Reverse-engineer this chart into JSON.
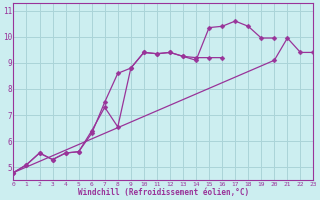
{
  "background_color": "#cceef0",
  "grid_color": "#aad4d8",
  "line_color": "#993399",
  "xlabel": "Windchill (Refroidissement éolien,°C)",
  "xlim": [
    0,
    23
  ],
  "ylim": [
    4.5,
    11.3
  ],
  "yticks": [
    5,
    6,
    7,
    8,
    9,
    10,
    11
  ],
  "xticks": [
    0,
    1,
    2,
    3,
    4,
    5,
    6,
    7,
    8,
    9,
    10,
    11,
    12,
    13,
    14,
    15,
    16,
    17,
    18,
    19,
    20,
    21,
    22,
    23
  ],
  "s1_x": [
    0,
    1,
    2,
    3,
    4,
    5,
    6,
    7,
    8,
    9,
    10,
    11,
    12,
    13,
    14,
    15,
    16
  ],
  "s1_y": [
    4.8,
    5.1,
    5.55,
    5.3,
    5.55,
    5.6,
    6.4,
    7.3,
    6.55,
    8.8,
    9.4,
    9.35,
    9.4,
    9.25,
    9.2,
    9.2,
    9.2
  ],
  "s2_x": [
    0,
    1,
    2,
    3,
    4,
    5,
    6,
    7,
    8,
    9,
    10,
    11,
    12,
    13,
    14,
    15,
    16,
    17,
    18,
    19,
    20
  ],
  "s2_y": [
    4.8,
    5.1,
    5.55,
    5.3,
    5.55,
    5.6,
    6.3,
    7.5,
    8.6,
    8.8,
    9.4,
    9.35,
    9.4,
    9.25,
    9.1,
    10.35,
    10.4,
    10.6,
    10.4,
    9.95,
    9.95
  ],
  "s3_x": [
    0,
    20,
    21,
    22,
    23
  ],
  "s3_y": [
    4.8,
    9.1,
    9.95,
    9.4,
    9.4
  ]
}
